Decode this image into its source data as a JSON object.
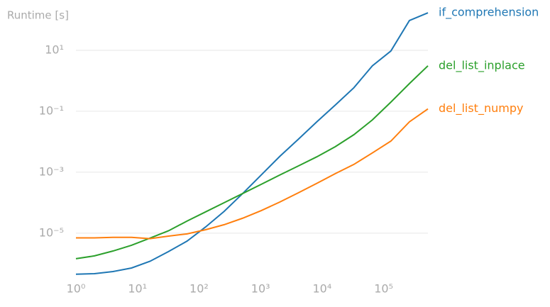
{
  "chart_data": {
    "type": "line",
    "title": "Runtime [s]",
    "log_x": true,
    "log_y": true,
    "grid": true,
    "x": [
      1,
      2,
      4,
      8,
      16,
      32,
      64,
      128,
      256,
      512,
      1024,
      2048,
      4096,
      8192,
      16384,
      32768,
      65536,
      131072,
      262144,
      524288
    ],
    "xlim": [
      1,
      524288
    ],
    "ylim": [
      3.4e-07,
      262
    ],
    "xticks": [
      {
        "value": 1,
        "label": "10⁰"
      },
      {
        "value": 10,
        "label": "10¹"
      },
      {
        "value": 100,
        "label": "10²"
      },
      {
        "value": 1000,
        "label": "10³"
      },
      {
        "value": 10000,
        "label": "10⁴"
      },
      {
        "value": 100000,
        "label": "10⁵"
      }
    ],
    "yticks": [
      {
        "value": 1e-05,
        "label": "10⁻⁵"
      },
      {
        "value": 0.001,
        "label": "10⁻³"
      },
      {
        "value": 0.1,
        "label": "10⁻¹"
      },
      {
        "value": 10,
        "label": "10¹"
      }
    ],
    "series": [
      {
        "name": "if_comprehension",
        "color": "#1f77b4",
        "values": [
          4.5e-07,
          4.7e-07,
          5.5e-07,
          7.2e-07,
          1.2e-06,
          2.5e-06,
          5.5e-06,
          1.6e-05,
          5.2e-05,
          0.0002,
          0.00081,
          0.0033,
          0.012,
          0.045,
          0.16,
          0.59,
          3.1,
          9.5,
          95,
          170
        ]
      },
      {
        "name": "del_list_inplace",
        "color": "#2ca02c",
        "values": [
          1.45e-06,
          1.8e-06,
          2.6e-06,
          4e-06,
          6.9e-06,
          1.2e-05,
          2.5e-05,
          5e-05,
          0.0001,
          0.0002,
          0.0004,
          0.00081,
          0.0016,
          0.0032,
          0.0069,
          0.017,
          0.052,
          0.2,
          0.81,
          3.1
        ]
      },
      {
        "name": "del_list_numpy",
        "color": "#ff7f0e",
        "values": [
          7e-06,
          7e-06,
          7.3e-06,
          7.3e-06,
          6.6e-06,
          8e-06,
          9.5e-06,
          1.3e-05,
          1.9e-05,
          3.1e-05,
          5.5e-05,
          0.000105,
          0.00021,
          0.00043,
          0.0009,
          0.0018,
          0.0043,
          0.0105,
          0.045,
          0.12
        ]
      }
    ]
  }
}
